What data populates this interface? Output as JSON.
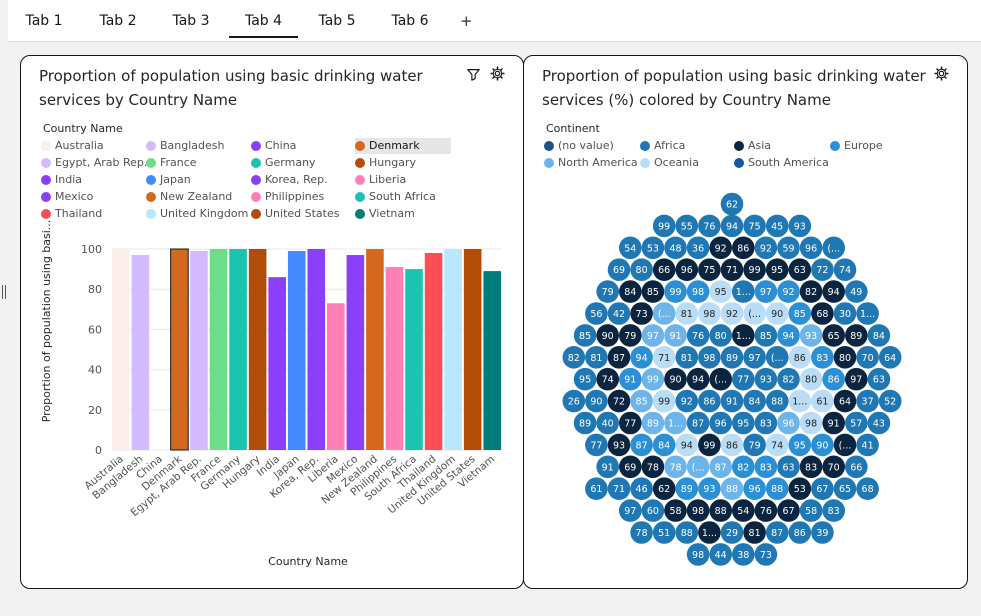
{
  "tabs": [
    "Tab 1",
    "Tab 2",
    "Tab 3",
    "Tab 4",
    "Tab 5",
    "Tab 6"
  ],
  "active_tab": "Tab 4",
  "add_tab_label": "+",
  "left_card": {
    "title": "Proportion of population using basic drinking water services  by Country Name",
    "legend_title": "Country Name",
    "selected_legend": "Denmark",
    "legend": [
      {
        "label": "Australia",
        "color": "#fdeeee"
      },
      {
        "label": "Bangladesh",
        "color": "#d4bbff"
      },
      {
        "label": "China",
        "color": "#8a3ffc"
      },
      {
        "label": "Denmark",
        "color": "#d2691e"
      },
      {
        "label": "Egypt, Arab Rep.",
        "color": "#d4bbff"
      },
      {
        "label": "France",
        "color": "#6fdc8c"
      },
      {
        "label": "Germany",
        "color": "#1bc4b1"
      },
      {
        "label": "Hungary",
        "color": "#b14d08"
      },
      {
        "label": "India",
        "color": "#8a3ffc"
      },
      {
        "label": "Japan",
        "color": "#4589ff"
      },
      {
        "label": "Korea, Rep.",
        "color": "#8a3ffc"
      },
      {
        "label": "Liberia",
        "color": "#ff7eb6"
      },
      {
        "label": "Mexico",
        "color": "#8a3ffc"
      },
      {
        "label": "New Zealand",
        "color": "#d2691e"
      },
      {
        "label": "Philippines",
        "color": "#ff7eb6"
      },
      {
        "label": "South Africa",
        "color": "#1bc4b1"
      },
      {
        "label": "Thailand",
        "color": "#fa4d56"
      },
      {
        "label": "United Kingdom",
        "color": "#bae6ff"
      },
      {
        "label": "United States",
        "color": "#b14d08"
      },
      {
        "label": "Vietnam",
        "color": "#007d79"
      }
    ]
  },
  "chart_data": {
    "type": "bar",
    "title": "Proportion of population using basic drinking water services  by Country Name",
    "xlabel": "Country Name",
    "ylabel": "Proportion of population using basi...",
    "ylim": [
      0,
      100
    ],
    "yticks": [
      0,
      20,
      40,
      60,
      80,
      100
    ],
    "grid": true,
    "legend_position": "top",
    "categories": [
      "Australia",
      "Bangladesh",
      "China",
      "Denmark",
      "Egypt, Arab Rep.",
      "France",
      "Germany",
      "Hungary",
      "India",
      "Japan",
      "Korea, Rep.",
      "Liberia",
      "Mexico",
      "New Zealand",
      "Philippines",
      "South Africa",
      "Thailand",
      "United Kingdom",
      "United States",
      "Vietnam"
    ],
    "values": [
      100,
      97,
      0,
      100,
      99,
      100,
      100,
      100,
      86,
      99,
      100,
      73,
      97,
      100,
      91,
      90,
      98,
      100,
      100,
      89
    ]
  },
  "right_card": {
    "title": "Proportion of population using basic drinking water services (%) colored by Country Name",
    "legend_title": "Continent",
    "legend": [
      {
        "label": "(no value)",
        "color": "#1d5486"
      },
      {
        "label": "Africa",
        "color": "#1f78b4"
      },
      {
        "label": "Asia",
        "color": "#0b2540"
      },
      {
        "label": "Europe",
        "color": "#2b8fd6"
      },
      {
        "label": "North America",
        "color": "#6cb4ea"
      },
      {
        "label": "Oceania",
        "color": "#b9dcf7"
      },
      {
        "label": "South America",
        "color": "#175a9c"
      }
    ],
    "bubble_rows": [
      [
        "62"
      ],
      [
        "99",
        "55",
        "76",
        "94",
        "75",
        "45",
        "93"
      ],
      [
        "54",
        "53",
        "48",
        "36",
        "92",
        "86",
        "92",
        "59",
        "96",
        "(..."
      ],
      [
        "69",
        "80",
        "66",
        "96",
        "75",
        "71",
        "99",
        "95",
        "63",
        "72",
        "74"
      ],
      [
        "79",
        "84",
        "85",
        "99",
        "98",
        "95",
        "1...",
        "97",
        "92",
        "82",
        "94",
        "49"
      ],
      [
        "56",
        "42",
        "73",
        "(...",
        "81",
        "98",
        "92",
        "(...",
        "90",
        "85",
        "68",
        "30",
        "1..."
      ],
      [
        "85",
        "90",
        "79",
        "97",
        "91",
        "76",
        "80",
        "1...",
        "85",
        "94",
        "93",
        "65",
        "89",
        "84"
      ],
      [
        "82",
        "81",
        "87",
        "94",
        "71",
        "81",
        "98",
        "89",
        "97",
        "(...",
        "86",
        "83",
        "80",
        "70",
        "64"
      ],
      [
        "95",
        "74",
        "91",
        "99",
        "90",
        "94",
        "(...",
        "77",
        "93",
        "82",
        "80",
        "86",
        "97",
        "63"
      ],
      [
        "26",
        "90",
        "72",
        "85",
        "99",
        "92",
        "86",
        "91",
        "84",
        "88",
        "1...",
        "61",
        "64",
        "37",
        "52"
      ],
      [
        "89",
        "40",
        "77",
        "89",
        "1...",
        "87",
        "96",
        "95",
        "83",
        "96",
        "98",
        "91",
        "57",
        "43"
      ],
      [
        "77",
        "93",
        "87",
        "84",
        "94",
        "99",
        "86",
        "79",
        "74",
        "95",
        "90",
        "(...",
        "41"
      ],
      [
        "91",
        "69",
        "78",
        "78",
        "(...",
        "87",
        "82",
        "83",
        "63",
        "83",
        "70",
        "66"
      ],
      [
        "61",
        "71",
        "46",
        "62",
        "89",
        "93",
        "88",
        "96",
        "88",
        "53",
        "67",
        "65",
        "68"
      ],
      [
        "97",
        "60",
        "58",
        "98",
        "88",
        "54",
        "76",
        "67",
        "58",
        "83"
      ],
      [
        "78",
        "51",
        "88",
        "1...",
        "29",
        "81",
        "87",
        "86",
        "39"
      ],
      [
        "98",
        "44",
        "38",
        "73"
      ]
    ],
    "bubble_continents": [
      [
        "Africa"
      ],
      [
        "Africa",
        "Africa",
        "Africa",
        "Africa",
        "Africa",
        "Africa",
        "Africa"
      ],
      [
        "Africa",
        "Africa",
        "Africa",
        "Africa",
        "Asia",
        "Asia",
        "Africa",
        "Africa",
        "Africa",
        "Africa"
      ],
      [
        "Africa",
        "Africa",
        "Asia",
        "Asia",
        "Asia",
        "Asia",
        "Asia",
        "Asia",
        "Asia",
        "Africa",
        "Africa"
      ],
      [
        "Africa",
        "Asia",
        "Asia",
        "Europe",
        "Europe",
        "Oceania",
        "Africa",
        "Europe",
        "Europe",
        "Asia",
        "Asia",
        "Africa"
      ],
      [
        "Africa",
        "Africa",
        "Asia",
        "North America",
        "Oceania",
        "Oceania",
        "Oceania",
        "Oceania",
        "Oceania",
        "Europe",
        "Asia",
        "Africa",
        "Africa"
      ],
      [
        "Africa",
        "Asia",
        "Asia",
        "North America",
        "North America",
        "Africa",
        "Africa",
        "Asia",
        "Africa",
        "Europe",
        "North America",
        "Asia",
        "Asia",
        "Africa"
      ],
      [
        "Africa",
        "Africa",
        "Asia",
        "Europe",
        "Oceania",
        "Africa",
        "Africa",
        "Africa",
        "Africa",
        "Africa",
        "Oceania",
        "Europe",
        "Asia",
        "Africa",
        "Africa"
      ],
      [
        "Africa",
        "Asia",
        "Europe",
        "North America",
        "Asia",
        "Asia",
        "Asia",
        "Africa",
        "Africa",
        "Africa",
        "Oceania",
        "Europe",
        "Asia",
        "Africa"
      ],
      [
        "Africa",
        "Africa",
        "Asia",
        "North America",
        "Oceania",
        "Africa",
        "Africa",
        "Africa",
        "Africa",
        "Africa",
        "Oceania",
        "Oceania",
        "Asia",
        "Africa",
        "Africa"
      ],
      [
        "Africa",
        "Africa",
        "Asia",
        "North America",
        "North America",
        "Africa",
        "Africa",
        "Africa",
        "Africa",
        "North America",
        "Oceania",
        "Asia",
        "Africa",
        "Africa"
      ],
      [
        "Africa",
        "Asia",
        "Europe",
        "Europe",
        "Oceania",
        "Asia",
        "Oceania",
        "Africa",
        "Oceania",
        "Europe",
        "Europe",
        "Asia",
        "Africa"
      ],
      [
        "Africa",
        "Asia",
        "Asia",
        "North America",
        "North America",
        "North America",
        "Europe",
        "Europe",
        "Africa",
        "Asia",
        "Asia",
        "Africa"
      ],
      [
        "Africa",
        "Africa",
        "Africa",
        "Asia",
        "Europe",
        "Europe",
        "North America",
        "Europe",
        "Europe",
        "Asia",
        "Africa",
        "Africa",
        "Africa"
      ],
      [
        "Africa",
        "Africa",
        "Asia",
        "Asia",
        "Asia",
        "Asia",
        "Asia",
        "Asia",
        "Africa",
        "Africa"
      ],
      [
        "Africa",
        "Africa",
        "Africa",
        "Asia",
        "Africa",
        "Asia",
        "Africa",
        "Africa",
        "Africa"
      ],
      [
        "Africa",
        "Africa",
        "Africa",
        "Africa"
      ]
    ]
  }
}
